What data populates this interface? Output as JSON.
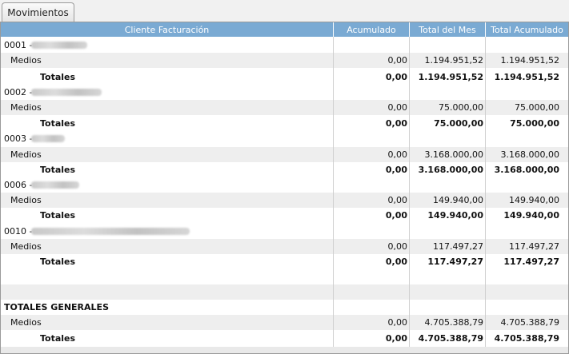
{
  "tab": {
    "label": "Movimientos"
  },
  "columns": [
    "Cliente Facturación",
    "Acumulado",
    "Total del Mes",
    "Total Acumulado"
  ],
  "rows": [
    {
      "type": "client",
      "label": "0001 -"
    },
    {
      "type": "medios",
      "label": "Medios",
      "acumulado": "0,00",
      "mes": "1.194.951,52",
      "total": "1.194.951,52"
    },
    {
      "type": "totales",
      "label": "Totales",
      "acumulado": "0,00",
      "mes": "1.194.951,52",
      "total": "1.194.951,52"
    },
    {
      "type": "client",
      "label": "0002 -"
    },
    {
      "type": "medios",
      "label": "Medios",
      "acumulado": "0,00",
      "mes": "75.000,00",
      "total": "75.000,00"
    },
    {
      "type": "totales",
      "label": "Totales",
      "acumulado": "0,00",
      "mes": "75.000,00",
      "total": "75.000,00"
    },
    {
      "type": "client",
      "label": "0003 -"
    },
    {
      "type": "medios",
      "label": "Medios",
      "acumulado": "0,00",
      "mes": "3.168.000,00",
      "total": "3.168.000,00"
    },
    {
      "type": "totales",
      "label": "Totales",
      "acumulado": "0,00",
      "mes": "3.168.000,00",
      "total": "3.168.000,00"
    },
    {
      "type": "client",
      "label": "0006 -"
    },
    {
      "type": "medios",
      "label": "Medios",
      "acumulado": "0,00",
      "mes": "149.940,00",
      "total": "149.940,00"
    },
    {
      "type": "totales",
      "label": "Totales",
      "acumulado": "0,00",
      "mes": "149.940,00",
      "total": "149.940,00"
    },
    {
      "type": "client",
      "label": "0010 -"
    },
    {
      "type": "medios",
      "label": "Medios",
      "acumulado": "0,00",
      "mes": "117.497,27",
      "total": "117.497,27"
    },
    {
      "type": "totales",
      "label": "Totales",
      "acumulado": "0,00",
      "mes": "117.497,27",
      "total": "117.497,27"
    },
    {
      "type": "blank"
    },
    {
      "type": "group",
      "label": "TOTALES GENERALES"
    },
    {
      "type": "medios",
      "label": "Medios",
      "acumulado": "0,00",
      "mes": "4.705.388,79",
      "total": "4.705.388,79"
    },
    {
      "type": "totales",
      "label": "Totales",
      "acumulado": "0,00",
      "mes": "4.705.388,79",
      "total": "4.705.388,79"
    }
  ]
}
